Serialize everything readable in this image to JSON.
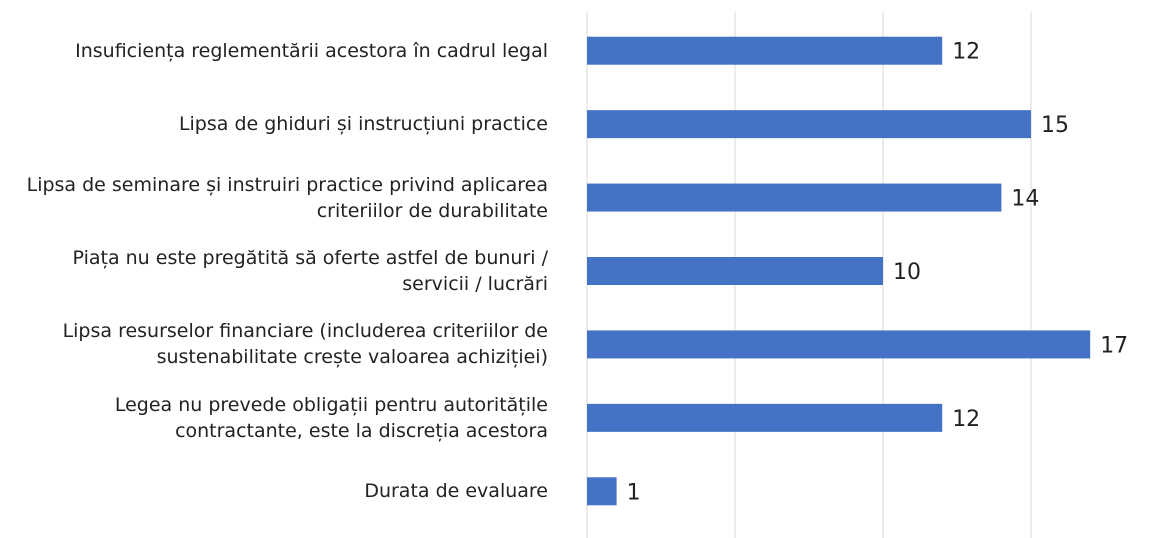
{
  "chart_data": {
    "type": "bar",
    "orientation": "horizontal",
    "categories": [
      "Insuficiența reglementării acestora în cadrul legal",
      "Lipsa de ghiduri și instrucțiuni practice",
      "Lipsa de seminare și instruiri practice privind aplicarea criteriilor de durabilitate",
      "Piața nu este pregătită să oferte astfel de bunuri / servicii / lucrări",
      "Lipsa resurselor financiare (includerea criteriilor de sustenabilitate crește valoarea achiziției)",
      "Legea nu prevede obligații pentru autoritățile contractante, este la discreția acestora",
      "Durata de evaluare"
    ],
    "values": [
      12,
      15,
      14,
      10,
      17,
      12,
      1
    ],
    "color": "#4472c4",
    "xlim": [
      0,
      20
    ],
    "xticks": [
      0,
      5,
      10,
      15
    ],
    "grid": true
  }
}
